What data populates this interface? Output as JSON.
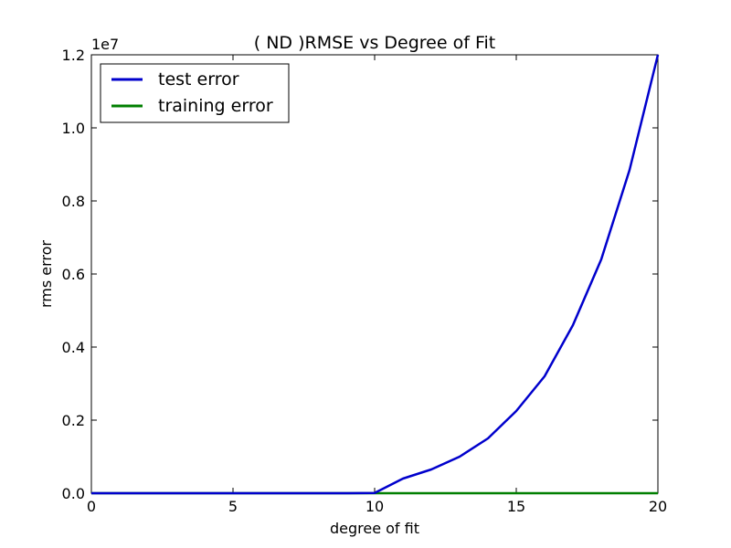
{
  "chart_data": {
    "type": "line",
    "title": "(  ND  )RMSE vs Degree of Fit",
    "xlabel": "degree of fit",
    "ylabel": "rms error",
    "y_offset_label": "1e7",
    "xlim": [
      0,
      20
    ],
    "ylim": [
      0,
      1.2
    ],
    "x_ticks": [
      0,
      5,
      10,
      15,
      20
    ],
    "x_tick_labels": [
      "0",
      "5",
      "10",
      "15",
      "20"
    ],
    "y_ticks": [
      0,
      0.2,
      0.4,
      0.6,
      0.8,
      1.0,
      1.2
    ],
    "y_tick_labels": [
      "0.0",
      "0.2",
      "0.4",
      "0.6",
      "0.8",
      "1.0",
      "1.2"
    ],
    "grid": false,
    "legend_position": "top-left",
    "x": [
      0,
      1,
      2,
      3,
      4,
      5,
      6,
      7,
      8,
      9,
      10,
      11,
      12,
      13,
      14,
      15,
      16,
      17,
      18,
      19,
      20
    ],
    "series": [
      {
        "name": "test error",
        "color": "#0000cc",
        "values": [
          0,
          0,
          0,
          0,
          0,
          0,
          0,
          0,
          0,
          0,
          0.0005,
          0.04,
          0.065,
          0.1,
          0.15,
          0.225,
          0.32,
          0.46,
          0.64,
          0.885,
          1.2
        ]
      },
      {
        "name": "training error",
        "color": "#007f00",
        "values": [
          0,
          0,
          0,
          0,
          0,
          0,
          0,
          0,
          0,
          0,
          0,
          0,
          0,
          0,
          0,
          0,
          0,
          0,
          0,
          0,
          0
        ]
      }
    ]
  }
}
